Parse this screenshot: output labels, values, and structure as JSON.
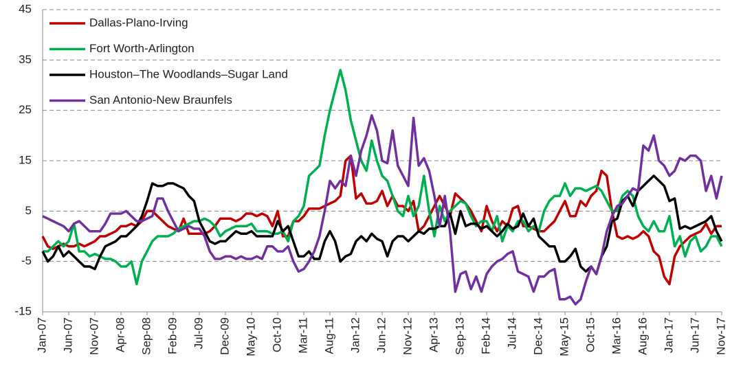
{
  "chart_data": {
    "type": "line",
    "categories": [
      "Jan-07",
      null,
      null,
      null,
      null,
      "Jun-07",
      null,
      null,
      null,
      null,
      "Nov-07",
      null,
      null,
      null,
      null,
      "Apr-08",
      null,
      null,
      null,
      null,
      "Sep-08",
      null,
      null,
      null,
      null,
      "Feb-09",
      null,
      null,
      null,
      null,
      "Jul-09",
      null,
      null,
      null,
      null,
      "Dec-09",
      null,
      null,
      null,
      null,
      "May-10",
      null,
      null,
      null,
      null,
      "Oct-10",
      null,
      null,
      null,
      null,
      "Mar-11",
      null,
      null,
      null,
      null,
      "Aug-11",
      null,
      null,
      null,
      null,
      "Jan-12",
      null,
      null,
      null,
      null,
      "Jun-12",
      null,
      null,
      null,
      null,
      "Nov-12",
      null,
      null,
      null,
      null,
      "Apr-13",
      null,
      null,
      null,
      null,
      "Sep-13",
      null,
      null,
      null,
      null,
      "Feb-14",
      null,
      null,
      null,
      null,
      "Jul-14",
      null,
      null,
      null,
      null,
      "Dec-14",
      null,
      null,
      null,
      null,
      "May-15",
      null,
      null,
      null,
      null,
      "Oct-15",
      null,
      null,
      null,
      null,
      "Mar-16",
      null,
      null,
      null,
      null,
      "Aug-16",
      null,
      null,
      null,
      null,
      "Jan-17",
      null,
      null,
      null,
      null,
      "Jun-17",
      null,
      null,
      null,
      null,
      "Nov-17"
    ],
    "series": [
      {
        "name": "Dallas-Plano-Irving",
        "color": "#c00000",
        "values": [
          0,
          -2,
          -2.5,
          -2,
          -1.5,
          -2,
          -2,
          -1.5,
          -2,
          -1.5,
          -1,
          0,
          0,
          0.5,
          1,
          2,
          2,
          2.5,
          2,
          3,
          5,
          5,
          4,
          3,
          2,
          1.5,
          1,
          3.5,
          0.5,
          0.5,
          0.5,
          0.5,
          1,
          2,
          3.5,
          3.5,
          3.5,
          3,
          3.5,
          4.5,
          4.5,
          4,
          4.5,
          4,
          2,
          5,
          0,
          0,
          3,
          3,
          4,
          5.5,
          5.5,
          5.5,
          6,
          6.5,
          7,
          8,
          15,
          16,
          7.5,
          8.5,
          6.5,
          6.5,
          7,
          9,
          6,
          8,
          6,
          6,
          5,
          7,
          1,
          2,
          4,
          6,
          8,
          6,
          4,
          8.5,
          7.5,
          6.5,
          5,
          3,
          1,
          6,
          3,
          1,
          3,
          2,
          5.5,
          6,
          2,
          2,
          1.5,
          1,
          1,
          2,
          3,
          5,
          7,
          4,
          4,
          7,
          6,
          8,
          9,
          13,
          12,
          5,
          0,
          -0.5,
          0,
          -0.5,
          0,
          1,
          0,
          -3,
          -4,
          -8,
          -9.5,
          -4,
          -2,
          -1,
          0,
          0.5,
          1,
          2.5,
          0.5,
          2,
          2
        ]
      },
      {
        "name": "Fort Worth-Arlington",
        "color": "#00b050",
        "values": [
          -3,
          -3,
          -2,
          -1,
          -2,
          -1,
          2.5,
          -3,
          -3,
          -4,
          -3.5,
          -4,
          -4.5,
          -4.5,
          -5,
          -6,
          -6,
          -5,
          -9.5,
          -5,
          -3,
          -1,
          0,
          0,
          0,
          0.5,
          1.5,
          2,
          2.5,
          3,
          3,
          3.5,
          3,
          2,
          0,
          1,
          1.5,
          2,
          2,
          2,
          2.5,
          1,
          1,
          1,
          0.5,
          0.5,
          1,
          -1,
          3,
          4,
          6,
          12,
          13,
          14,
          20,
          25,
          29,
          33,
          29,
          23,
          19,
          15,
          13,
          19,
          15,
          12,
          11,
          8,
          5,
          4,
          8,
          4,
          6,
          12,
          5,
          0,
          6,
          3,
          5,
          6,
          7,
          6.5,
          4,
          2,
          3,
          3,
          1,
          4,
          -1,
          2,
          1,
          3,
          3,
          1,
          2,
          1,
          5,
          7,
          8,
          8,
          10.5,
          8,
          9.5,
          9.5,
          9,
          9.5,
          10,
          9,
          7,
          5,
          5,
          8,
          9,
          8,
          4,
          2,
          1,
          3,
          1,
          1,
          4,
          -2,
          0,
          -4,
          -1,
          0,
          -3,
          -2,
          0,
          0,
          -2
        ]
      },
      {
        "name": "Houston–The Woodlands–Sugar Land",
        "color": "#000000",
        "values": [
          -3,
          -5,
          -4,
          -2,
          -4,
          -3,
          -4,
          -5,
          -6,
          -6,
          -6.5,
          -4,
          -2,
          -1.5,
          -1,
          0,
          0,
          1,
          2,
          4,
          7,
          10.5,
          10,
          10,
          10.5,
          10.5,
          10,
          9.5,
          8,
          7,
          3,
          1,
          -1,
          -1.5,
          -1,
          -1,
          0,
          1,
          0.5,
          0.5,
          1,
          0,
          0,
          0,
          0,
          3,
          1,
          2,
          -1,
          -4,
          -4,
          -3,
          -4.5,
          -4.5,
          -1,
          1,
          -1,
          -5,
          -4,
          -3.5,
          -1,
          0,
          -1,
          0.5,
          -0.5,
          -1,
          -4,
          -1,
          0,
          0,
          -1,
          0,
          1,
          0.5,
          1.5,
          1.5,
          2,
          2,
          4.5,
          0.5,
          5,
          2,
          2.5,
          2.5,
          1.5,
          2,
          1,
          0,
          1,
          2.5,
          1.5,
          2,
          4.5,
          2,
          3.5,
          0,
          -1,
          -2,
          -2,
          -5,
          -5,
          -4,
          -2.5,
          -6,
          -7,
          -6,
          -7.5,
          -4,
          -2,
          3,
          3.5,
          7,
          8,
          6,
          9,
          10,
          11,
          12,
          11,
          10,
          7,
          7.5,
          1.5,
          2,
          1.5,
          2,
          2.5,
          3,
          4,
          1,
          -1
        ]
      },
      {
        "name": "San Antonio-New Braunfels",
        "color": "#7030a0",
        "values": [
          4,
          3.5,
          3,
          2.5,
          2,
          1,
          2.5,
          3,
          2,
          1,
          1,
          1,
          2.5,
          4.5,
          4.5,
          4.5,
          5,
          4,
          3,
          3,
          3.5,
          4,
          7.5,
          7.5,
          5,
          3,
          1,
          1.5,
          2,
          1.5,
          1.5,
          0,
          -3,
          -4.5,
          -4.5,
          -4,
          -4,
          -4.5,
          -4,
          -4.5,
          -4.5,
          -4,
          -4.5,
          -2,
          -2,
          -3,
          -3,
          -2,
          -5,
          -7,
          -6.5,
          -5,
          -3,
          0,
          5,
          11,
          9.5,
          11,
          10,
          16,
          12,
          17,
          20,
          24,
          21,
          15,
          14.5,
          21,
          14,
          12,
          10,
          23.5,
          14,
          15.5,
          13,
          8,
          2,
          8,
          1,
          -11,
          -7.5,
          -7,
          -10.5,
          -8,
          -11,
          -7.5,
          -6,
          -5,
          -4.5,
          -3.5,
          -3,
          -7,
          -7.5,
          -8,
          -11,
          -8,
          -8,
          -7,
          -6.5,
          -12.5,
          -12.5,
          -12,
          -13.5,
          -12.5,
          -9,
          -6,
          -7.5,
          -4,
          1,
          4,
          6,
          6.5,
          8,
          9.5,
          9,
          18,
          17,
          20,
          15,
          14,
          12,
          13,
          15.5,
          15,
          16,
          16,
          15,
          9,
          12,
          7.5,
          12
        ]
      }
    ],
    "ylim": [
      -15,
      45
    ],
    "yticks": [
      -15,
      -5,
      5,
      15,
      25,
      35,
      45
    ],
    "grid": true,
    "legend": "upper left"
  }
}
